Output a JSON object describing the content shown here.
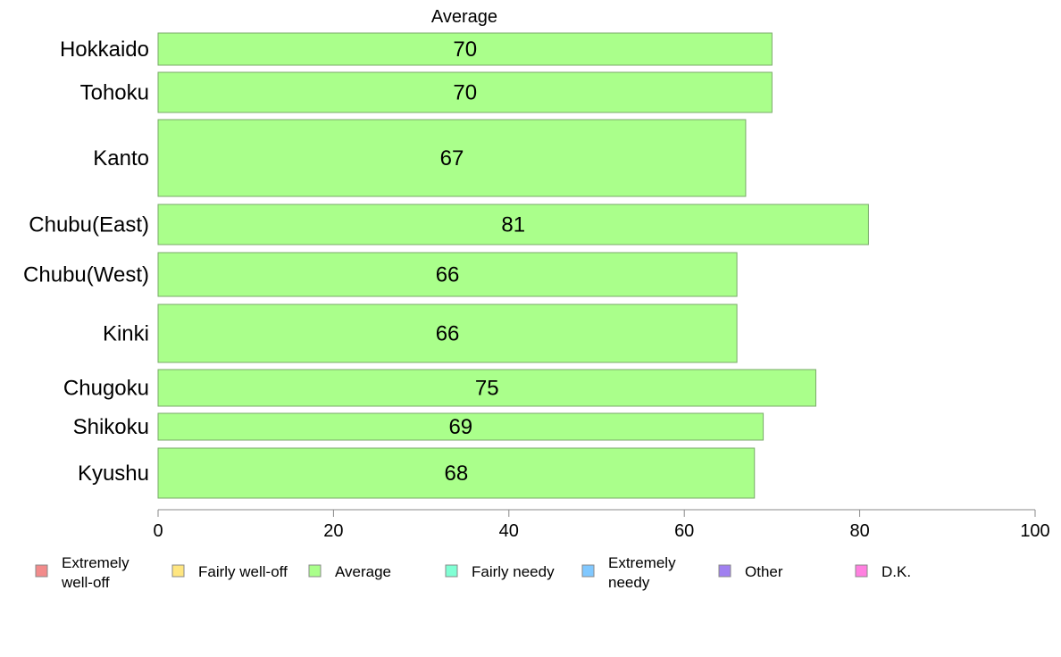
{
  "chart_data": {
    "type": "bar",
    "orientation": "horizontal",
    "title": "Average",
    "categories": [
      "Hokkaido",
      "Tohoku",
      "Kanto",
      "Chubu(East)",
      "Chubu(West)",
      "Kinki",
      "Chugoku",
      "Shikoku",
      "Kyushu"
    ],
    "series": [
      {
        "name": "Average",
        "values": [
          70,
          70,
          67,
          81,
          66,
          66,
          75,
          69,
          68
        ]
      }
    ],
    "data_labels": [
      "70",
      "70",
      "67",
      "81",
      "66",
      "66",
      "75",
      "69",
      "68"
    ],
    "xlim": [
      0,
      100
    ],
    "x_ticks": [
      0,
      20,
      40,
      60,
      80,
      100
    ],
    "grid": false,
    "legend_position": "bottom",
    "legend": [
      {
        "label_lines": [
          "Extremely",
          "well-off"
        ],
        "color": "#f28b8b"
      },
      {
        "label_lines": [
          "Fairly well-off"
        ],
        "color": "#ffe680"
      },
      {
        "label_lines": [
          "Average"
        ],
        "color": "#aaff8b"
      },
      {
        "label_lines": [
          "Fairly needy"
        ],
        "color": "#80ffd4"
      },
      {
        "label_lines": [
          "Extremely",
          "needy"
        ],
        "color": "#80c8ff"
      },
      {
        "label_lines": [
          "Other"
        ],
        "color": "#a080f0"
      },
      {
        "label_lines": [
          "D.K."
        ],
        "color": "#ff80e0"
      }
    ],
    "bar_color": "#aaff8b",
    "bar_stroke": "#7aaa6a",
    "axis_color": "#888888"
  }
}
